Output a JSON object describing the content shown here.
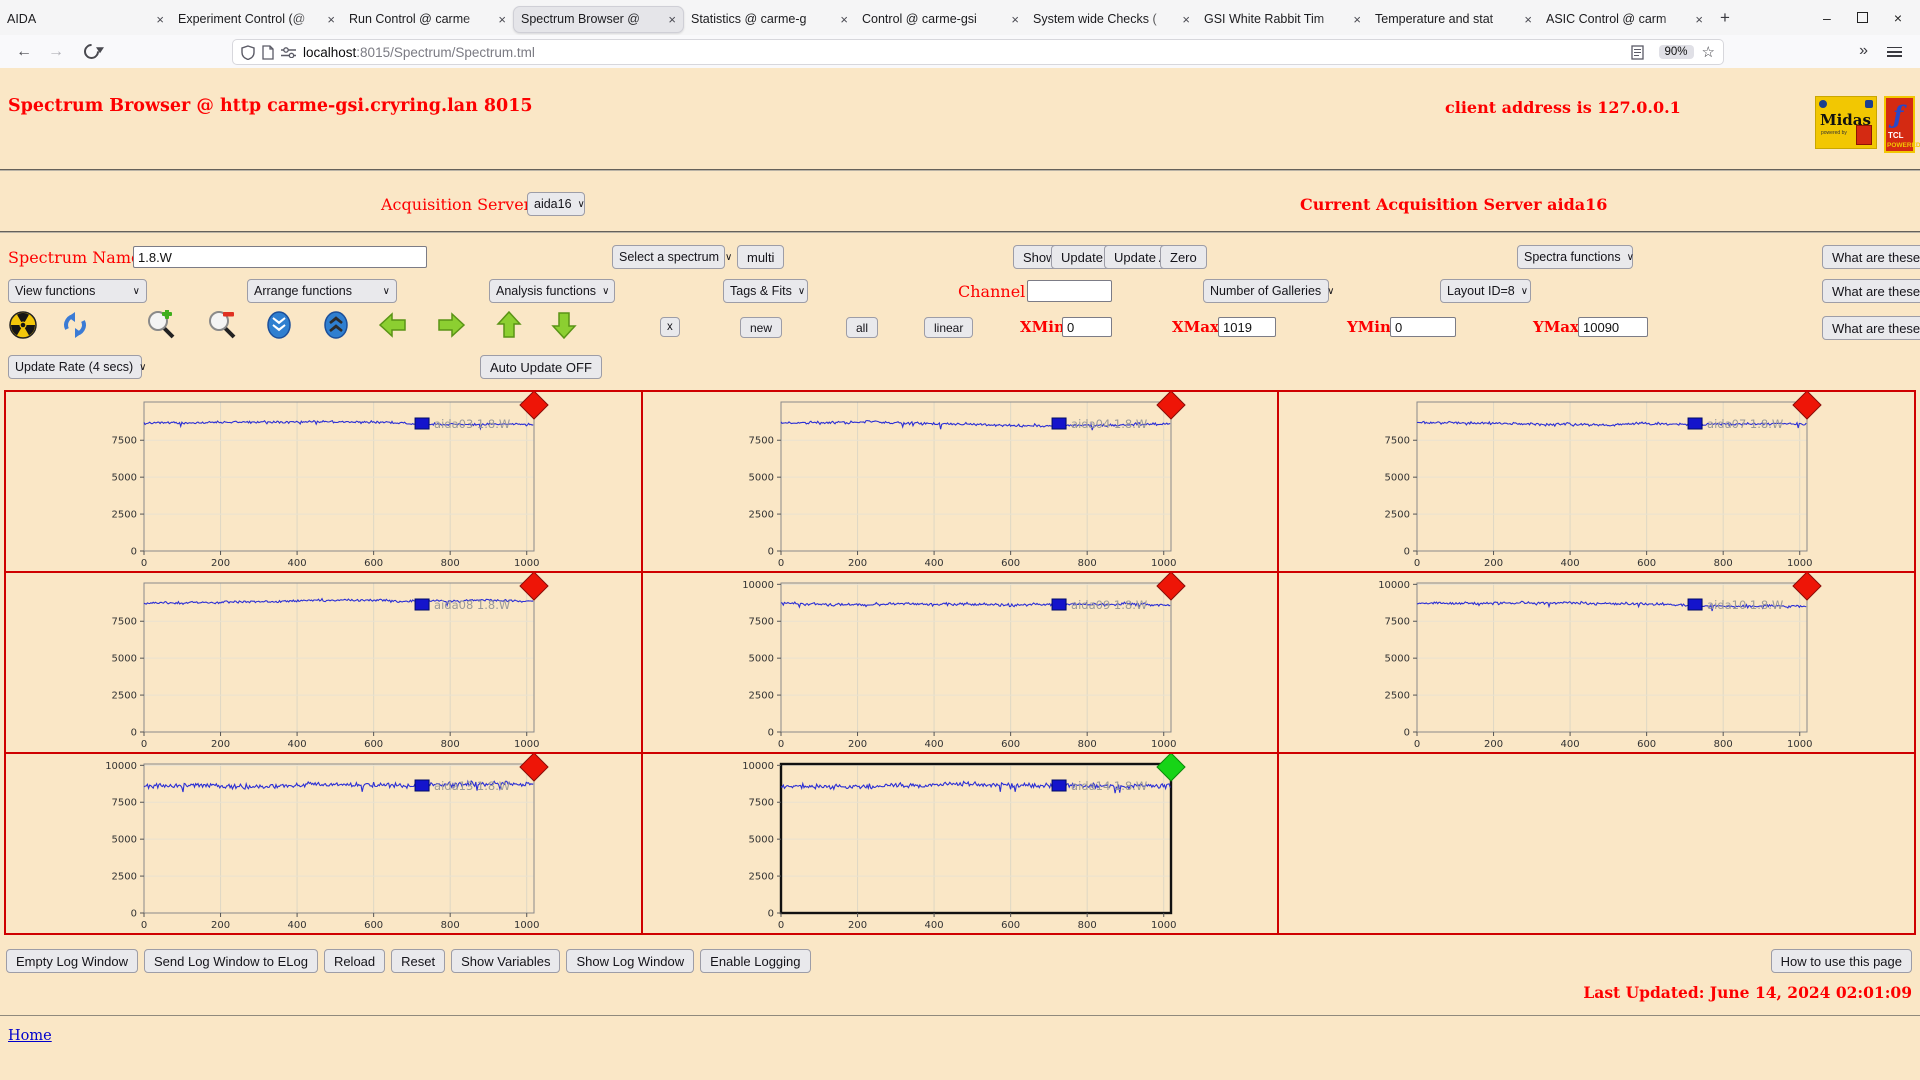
{
  "browser": {
    "tabs": [
      {
        "title": "AIDA",
        "active": false
      },
      {
        "title": "Experiment Control (@",
        "active": false
      },
      {
        "title": "Run Control @ carme",
        "active": false
      },
      {
        "title": "Spectrum Browser @",
        "active": true
      },
      {
        "title": "Statistics @ carme-g",
        "active": false
      },
      {
        "title": "Control @ carme-gsi",
        "active": false
      },
      {
        "title": "System wide Checks (",
        "active": false
      },
      {
        "title": "GSI White Rabbit Tim",
        "active": false
      },
      {
        "title": "Temperature and stat",
        "active": false
      },
      {
        "title": "ASIC Control @ carm",
        "active": false
      }
    ],
    "tab_close_glyph": "×",
    "new_tab": "+",
    "window_controls": {
      "minimize": "–",
      "close": "×"
    },
    "nav": {
      "back": "←",
      "forward": "→",
      "url_host": "localhost",
      "url_path": ":8015/Spectrum/Spectrum.tml",
      "zoom_level": "90%",
      "star": "☆",
      "overflow": "»"
    }
  },
  "header": {
    "title": "Spectrum Browser @ http carme-gsi.cryring.lan 8015",
    "client": "client address is 127.0.0.1",
    "midas_logo": {
      "name": "Midas",
      "powered_by": "powered by"
    },
    "tcl_logo": {
      "line1": "TCL",
      "line2": "POWERED"
    }
  },
  "acquisition": {
    "label": "Acquisition Servers",
    "selected": "aida16",
    "current": "Current Acquisition Server aida16"
  },
  "spectrum_row": {
    "name_label": "Spectrum Name:",
    "name_value": "1.8.W",
    "select_placeholder": "Select a spectrum",
    "multi": "multi",
    "show": "Show",
    "update": "Update",
    "update_all": "Update All",
    "zero": "Zero",
    "spectra_functions": "Spectra functions",
    "what": "What are these?"
  },
  "functions_row": {
    "view": "View functions",
    "arrange": "Arrange functions",
    "analysis": "Analysis functions",
    "tags": "Tags & Fits",
    "channel_label": "Channel:",
    "channel_value": "",
    "galleries": "Number of Galleries",
    "layout": "Layout ID=8",
    "what": "What are these?"
  },
  "toolbar_row": {
    "icons": [
      "radiation-icon",
      "refresh-icon",
      "zoom-in-icon",
      "zoom-out-icon",
      "scroll-down-icon",
      "scroll-up-icon",
      "arrow-left-icon",
      "arrow-right-icon",
      "arrow-up-icon",
      "arrow-down-icon"
    ],
    "x_button": "x",
    "new": "new",
    "all": "all",
    "linear": "linear",
    "xmin_label": "XMin",
    "xmin_value": "0",
    "xmax_label": "XMax",
    "xmax_value": "1019",
    "ymin_label": "YMin",
    "ymin_value": "0",
    "ymax_label": "YMax",
    "ymax_value": "10090",
    "what": "What are these?"
  },
  "update_row": {
    "rate": "Update Rate (4 secs)",
    "auto": "Auto Update OFF"
  },
  "chart_data": {
    "type": "line",
    "x_ticks": [
      0,
      200,
      400,
      600,
      800,
      1000
    ],
    "xlim": [
      0,
      1019
    ],
    "ylim": [
      0,
      10090
    ],
    "baseline": 8650,
    "line_color": "#2b2fd4",
    "legend_marker_color": "#1414cc",
    "legend_text_color": "#9a9a9a",
    "grid_border_color": "#cf0000",
    "galleries": [
      {
        "name": "aida03 1.8.W",
        "y_ticks": [
          0,
          2500,
          5000,
          7500
        ],
        "diamond": "#ee1507",
        "selected": false,
        "noise": 120,
        "seed": 3
      },
      {
        "name": "aida04 1.8.W",
        "y_ticks": [
          0,
          2500,
          5000,
          7500
        ],
        "diamond": "#ee1507",
        "selected": false,
        "noise": 150,
        "seed": 4
      },
      {
        "name": "aida07 1.8.W",
        "y_ticks": [
          0,
          2500,
          5000,
          7500
        ],
        "diamond": "#ee1507",
        "selected": false,
        "noise": 130,
        "seed": 7
      },
      {
        "name": "aida08 1.8.W",
        "y_ticks": [
          0,
          2500,
          5000,
          7500
        ],
        "diamond": "#ee1507",
        "selected": false,
        "noise": 130,
        "seed": 8
      },
      {
        "name": "aida09 1.8.W",
        "y_ticks": [
          0,
          2500,
          5000,
          7500,
          10000
        ],
        "diamond": "#ee1507",
        "selected": false,
        "noise": 150,
        "seed": 9
      },
      {
        "name": "aida10 1.8.W",
        "y_ticks": [
          0,
          2500,
          5000,
          7500,
          10000
        ],
        "diamond": "#ee1507",
        "selected": false,
        "noise": 130,
        "seed": 10
      },
      {
        "name": "aida13 1.8.W",
        "y_ticks": [
          0,
          2500,
          5000,
          7500,
          10000
        ],
        "diamond": "#ee1507",
        "selected": false,
        "noise": 250,
        "seed": 13
      },
      {
        "name": "aida14 1.8.W",
        "y_ticks": [
          0,
          2500,
          5000,
          7500,
          10000
        ],
        "diamond": "#17d417",
        "selected": true,
        "noise": 230,
        "seed": 14
      }
    ]
  },
  "footer": {
    "buttons": [
      "Empty Log Window",
      "Send Log Window to ELog",
      "Reload",
      "Reset",
      "Show Variables",
      "Show Log Window",
      "Enable Logging"
    ],
    "help": "How to use this page",
    "last_updated": "Last Updated: June 14, 2024 02:01:09",
    "home": "Home"
  }
}
